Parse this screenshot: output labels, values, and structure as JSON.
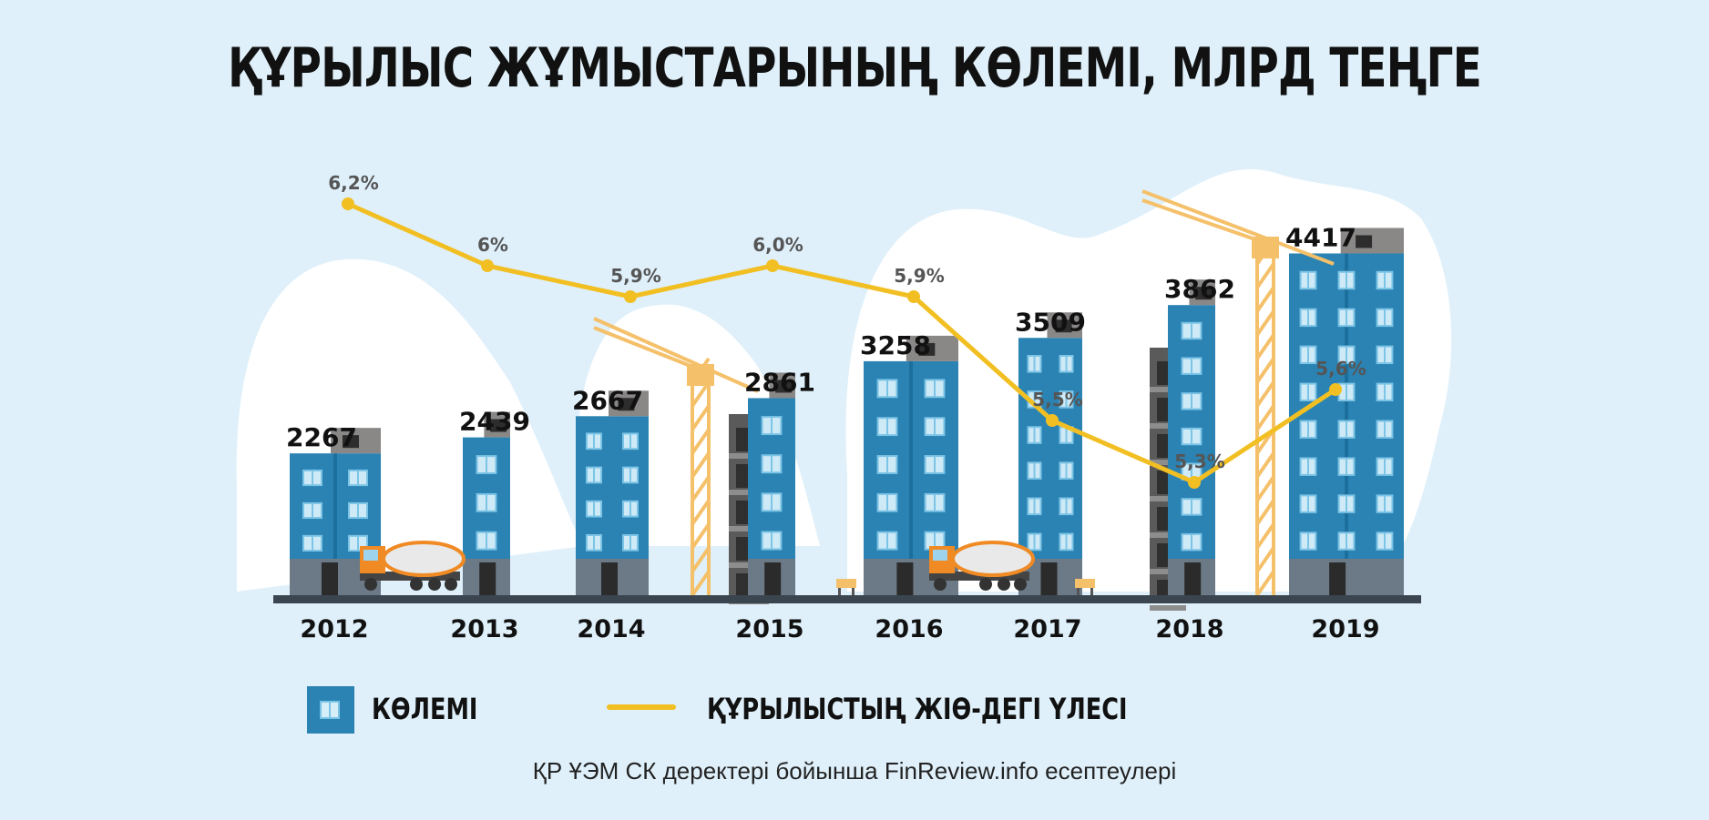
{
  "chart_data": {
    "type": "bar",
    "title": "ҚҰРЫЛЫС ЖҰМЫСТАРЫНЫҢ КӨЛЕМІ, МЛРД ТЕҢГЕ",
    "categories": [
      "2012",
      "2013",
      "2014",
      "2015",
      "2016",
      "2017",
      "2018",
      "2019"
    ],
    "series": [
      {
        "name": "КӨЛЕМІ",
        "type": "bar",
        "values": [
          2267,
          2439,
          2667,
          2861,
          3258,
          3509,
          3862,
          4417
        ],
        "labels": [
          "2267",
          "2439",
          "2667",
          "2861",
          "3258",
          "3509",
          "3862",
          "4417"
        ]
      },
      {
        "name": "ҚҰРЫЛЫСТЫҢ ЖІӨ-ДЕГІ ҮЛЕСІ",
        "type": "line",
        "values": [
          6.2,
          6.0,
          5.9,
          6.0,
          5.9,
          5.5,
          5.3,
          5.6
        ],
        "labels": [
          "6,2%",
          "6%",
          "5,9%",
          "6,0%",
          "5,9%",
          "5,5%",
          "5,3%",
          "5,6%"
        ]
      }
    ],
    "ylim": [
      0,
      4600
    ],
    "grid": false,
    "legend": "bottom",
    "colors": {
      "bar": "#2b83b3",
      "bar_light": "#1aa3d4",
      "line": "#f2bf23",
      "ground": "#3b4550",
      "roof": "#8a8787",
      "crane": "#f5c06a"
    }
  },
  "legend": {
    "volume_label": "КӨЛЕМІ",
    "share_label": "ҚҰРЫЛЫСТЫҢ ЖІӨ-ДЕГІ ҮЛЕСІ"
  },
  "source": "ҚР ҰЭМ СК деректері бойынша FinReview.info есептеулері"
}
